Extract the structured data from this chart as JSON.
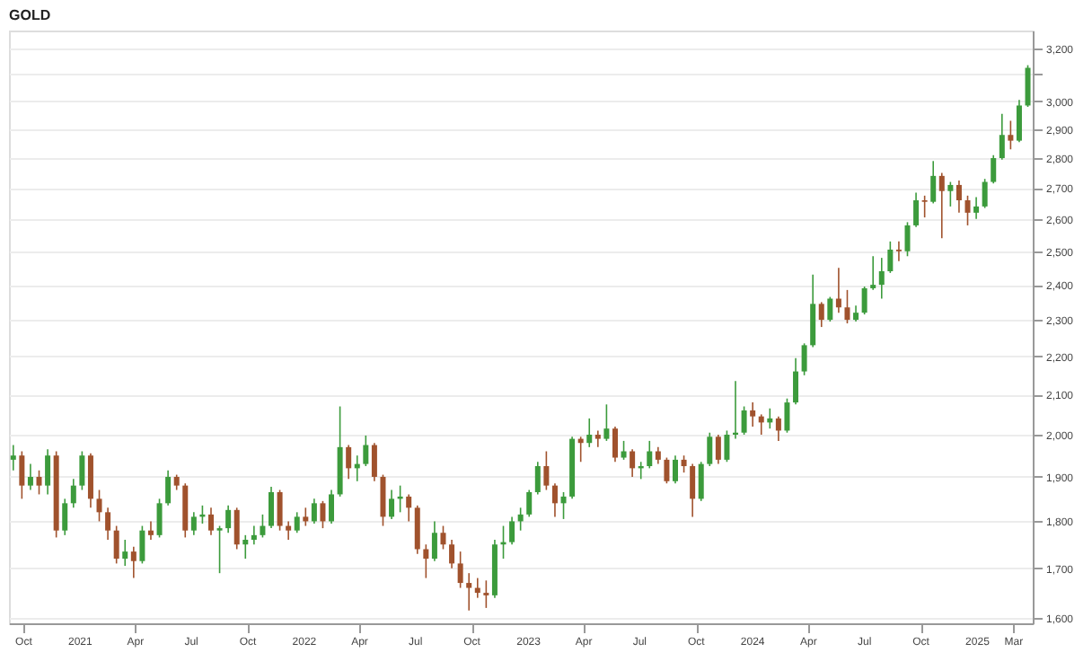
{
  "chart_data": {
    "type": "candlestick",
    "title": "GOLD",
    "log": true,
    "grid": "y",
    "colors": [
      "#3c9b3c",
      "#a0522d",
      "#3c9b3c",
      "#a0522d",
      "#3c9b3c",
      "#a0522d",
      "#3c9b3c",
      "#3c9b3c",
      "#3c9b3c",
      "#a0522d",
      "#a0522d",
      "#a0522d",
      "#a0522d",
      "#3c9b3c",
      "#a0522d",
      "#3c9b3c",
      "#a0522d",
      "#3c9b3c",
      "#3c9b3c",
      "#a0522d",
      "#a0522d",
      "#3c9b3c",
      "#3c9b3c",
      "#a0522d",
      "#3c9b3c",
      "#3c9b3c",
      "#a0522d",
      "#3c9b3c",
      "#3c9b3c",
      "#3c9b3c",
      "#3c9b3c",
      "#a0522d",
      "#a0522d",
      "#3c9b3c",
      "#a0522d",
      "#3c9b3c",
      "#a0522d",
      "#3c9b3c",
      "#3c9b3c",
      "#a0522d",
      "#3c9b3c",
      "#3c9b3c",
      "#a0522d",
      "#a0522d",
      "#3c9b3c",
      "#3c9b3c",
      "#a0522d",
      "#a0522d",
      "#a0522d",
      "#3c9b3c",
      "#a0522d",
      "#a0522d",
      "#a0522d",
      "#a0522d",
      "#a0522d",
      "#a0522d",
      "#3c9b3c",
      "#3c9b3c",
      "#3c9b3c",
      "#3c9b3c",
      "#3c9b3c",
      "#3c9b3c",
      "#a0522d",
      "#a0522d",
      "#3c9b3c",
      "#3c9b3c",
      "#a0522d",
      "#3c9b3c",
      "#a0522d",
      "#3c9b3c",
      "#a0522d",
      "#3c9b3c",
      "#a0522d",
      "#3c9b3c",
      "#3c9b3c",
      "#a0522d",
      "#a0522d",
      "#3c9b3c",
      "#a0522d",
      "#a0522d",
      "#3c9b3c",
      "#3c9b3c",
      "#a0522d",
      "#3c9b3c",
      "#3c9b3c",
      "#3c9b3c",
      "#a0522d",
      "#a0522d",
      "#3c9b3c",
      "#a0522d",
      "#3c9b3c",
      "#3c9b3c",
      "#3c9b3c",
      "#3c9b3c",
      "#a0522d",
      "#3c9b3c",
      "#a0522d",
      "#a0522d",
      "#3c9b3c",
      "#3c9b3c",
      "#3c9b3c",
      "#3c9b3c",
      "#3c9b3c",
      "#a0522d",
      "#3c9b3c",
      "#3c9b3c",
      "#a0522d",
      "#3c9b3c",
      "#a0522d",
      "#3c9b3c",
      "#a0522d",
      "#a0522d",
      "#3c9b3c",
      "#3c9b3c",
      "#3c9b3c",
      "#3c9b3c",
      "#a0522d",
      "#3c9b3c",
      "#3c9b3c"
    ],
    "xlim": [
      "2020-09-07",
      "2025-04-01"
    ],
    "xticks": [
      {
        "value": "2020-10-01",
        "label": "Oct"
      },
      {
        "value": "2021-01-01",
        "label": "2021"
      },
      {
        "value": "2021-04-01",
        "label": "Apr"
      },
      {
        "value": "2021-07-01",
        "label": "Jul"
      },
      {
        "value": "2021-10-01",
        "label": "Oct"
      },
      {
        "value": "2022-01-01",
        "label": "2022"
      },
      {
        "value": "2022-04-01",
        "label": "Apr"
      },
      {
        "value": "2022-07-01",
        "label": "Jul"
      },
      {
        "value": "2022-10-01",
        "label": "Oct"
      },
      {
        "value": "2023-01-01",
        "label": "2023"
      },
      {
        "value": "2023-04-01",
        "label": "Apr"
      },
      {
        "value": "2023-07-01",
        "label": "Jul"
      },
      {
        "value": "2023-10-01",
        "label": "Oct"
      },
      {
        "value": "2024-01-01",
        "label": "2024"
      },
      {
        "value": "2024-04-01",
        "label": "Apr"
      },
      {
        "value": "2024-07-01",
        "label": "Jul"
      },
      {
        "value": "2024-10-01",
        "label": "Oct"
      },
      {
        "value": "2025-01-01",
        "label": "2025"
      },
      {
        "value": "2025-03-01",
        "label": "Mar"
      }
    ],
    "ylim": [
      1590,
      3270
    ],
    "yticks": [
      {
        "value": 1600,
        "label": "1,600"
      },
      {
        "value": 1700,
        "label": "1,700"
      },
      {
        "value": 1800,
        "label": "1,800"
      },
      {
        "value": 1900,
        "label": "1,900"
      },
      {
        "value": 2000,
        "label": "2,000"
      },
      {
        "value": 2100,
        "label": "2,100"
      },
      {
        "value": 2200,
        "label": "2,200"
      },
      {
        "value": 2300,
        "label": "2,300"
      },
      {
        "value": 2400,
        "label": "2,400"
      },
      {
        "value": 2500,
        "label": "2,500"
      },
      {
        "value": 2600,
        "label": "2,600"
      },
      {
        "value": 2700,
        "label": "2,700"
      },
      {
        "value": 2800,
        "label": "2,800"
      },
      {
        "value": 2900,
        "label": "2,900"
      },
      {
        "value": 3000,
        "label": "3,000"
      },
      {
        "value": 3100,
        "label": null
      },
      {
        "value": 3200,
        "label": "3,200"
      }
    ],
    "x": [
      "2020-09-14",
      "2020-09-28",
      "2020-10-12",
      "2020-10-26",
      "2020-11-09",
      "2020-11-23",
      "2020-12-07",
      "2020-12-21",
      "2021-01-04",
      "2021-01-18",
      "2021-02-01",
      "2021-02-15",
      "2021-03-01",
      "2021-03-15",
      "2021-03-29",
      "2021-04-12",
      "2021-04-26",
      "2021-05-10",
      "2021-05-24",
      "2021-06-07",
      "2021-06-21",
      "2021-07-05",
      "2021-07-19",
      "2021-08-02",
      "2021-08-16",
      "2021-08-30",
      "2021-09-13",
      "2021-09-27",
      "2021-10-11",
      "2021-10-25",
      "2021-11-08",
      "2021-11-22",
      "2021-12-06",
      "2021-12-20",
      "2022-01-03",
      "2022-01-17",
      "2022-01-31",
      "2022-02-14",
      "2022-02-28",
      "2022-03-14",
      "2022-03-28",
      "2022-04-11",
      "2022-04-25",
      "2022-05-09",
      "2022-05-23",
      "2022-06-06",
      "2022-06-20",
      "2022-07-04",
      "2022-07-18",
      "2022-08-01",
      "2022-08-15",
      "2022-08-29",
      "2022-09-12",
      "2022-09-26",
      "2022-10-10",
      "2022-10-24",
      "2022-11-07",
      "2022-11-21",
      "2022-12-05",
      "2022-12-19",
      "2023-01-02",
      "2023-01-16",
      "2023-01-30",
      "2023-02-13",
      "2023-02-27",
      "2023-03-13",
      "2023-03-27",
      "2023-04-10",
      "2023-04-24",
      "2023-05-08",
      "2023-05-22",
      "2023-06-05",
      "2023-06-19",
      "2023-07-03",
      "2023-07-17",
      "2023-07-31",
      "2023-08-14",
      "2023-08-28",
      "2023-09-11",
      "2023-09-25",
      "2023-10-09",
      "2023-10-23",
      "2023-11-06",
      "2023-11-20",
      "2023-12-04",
      "2023-12-18",
      "2024-01-01",
      "2024-01-15",
      "2024-01-29",
      "2024-02-12",
      "2024-02-26",
      "2024-03-11",
      "2024-03-25",
      "2024-04-08",
      "2024-04-22",
      "2024-05-06",
      "2024-05-20",
      "2024-06-03",
      "2024-06-17",
      "2024-07-01",
      "2024-07-15",
      "2024-07-29",
      "2024-08-12",
      "2024-08-26",
      "2024-09-09",
      "2024-09-23",
      "2024-10-07",
      "2024-10-21",
      "2024-11-04",
      "2024-11-18",
      "2024-12-02",
      "2024-12-16",
      "2024-12-30",
      "2025-01-13",
      "2025-01-27",
      "2025-02-10",
      "2025-02-24",
      "2025-03-10",
      "2025-03-24"
    ],
    "ohlc": [
      [
        1940,
        1975,
        1915,
        1950
      ],
      [
        1950,
        1960,
        1850,
        1880
      ],
      [
        1880,
        1930,
        1870,
        1900
      ],
      [
        1900,
        1915,
        1860,
        1880
      ],
      [
        1880,
        1965,
        1860,
        1950
      ],
      [
        1950,
        1960,
        1765,
        1780
      ],
      [
        1780,
        1850,
        1770,
        1840
      ],
      [
        1840,
        1895,
        1830,
        1880
      ],
      [
        1880,
        1960,
        1870,
        1950
      ],
      [
        1950,
        1955,
        1830,
        1850
      ],
      [
        1850,
        1870,
        1800,
        1820
      ],
      [
        1820,
        1830,
        1760,
        1780
      ],
      [
        1780,
        1790,
        1710,
        1720
      ],
      [
        1720,
        1760,
        1705,
        1735
      ],
      [
        1735,
        1745,
        1680,
        1715
      ],
      [
        1715,
        1790,
        1710,
        1780
      ],
      [
        1780,
        1800,
        1760,
        1770
      ],
      [
        1770,
        1850,
        1765,
        1840
      ],
      [
        1840,
        1915,
        1835,
        1900
      ],
      [
        1900,
        1905,
        1870,
        1880
      ],
      [
        1880,
        1885,
        1765,
        1780
      ],
      [
        1780,
        1820,
        1770,
        1810
      ],
      [
        1810,
        1835,
        1795,
        1815
      ],
      [
        1815,
        1830,
        1770,
        1780
      ],
      [
        1780,
        1790,
        1690,
        1785
      ],
      [
        1785,
        1835,
        1775,
        1825
      ],
      [
        1825,
        1830,
        1740,
        1750
      ],
      [
        1750,
        1770,
        1720,
        1760
      ],
      [
        1760,
        1790,
        1750,
        1770
      ],
      [
        1770,
        1815,
        1765,
        1790
      ],
      [
        1790,
        1877,
        1785,
        1865
      ],
      [
        1865,
        1870,
        1780,
        1790
      ],
      [
        1790,
        1800,
        1760,
        1780
      ],
      [
        1780,
        1820,
        1775,
        1810
      ],
      [
        1810,
        1830,
        1790,
        1800
      ],
      [
        1800,
        1850,
        1795,
        1840
      ],
      [
        1840,
        1845,
        1785,
        1800
      ],
      [
        1800,
        1870,
        1795,
        1860
      ],
      [
        1860,
        2070,
        1855,
        1970
      ],
      [
        1970,
        1975,
        1895,
        1920
      ],
      [
        1920,
        1950,
        1890,
        1930
      ],
      [
        1930,
        1998,
        1925,
        1975
      ],
      [
        1975,
        1980,
        1890,
        1900
      ],
      [
        1900,
        1905,
        1790,
        1810
      ],
      [
        1810,
        1870,
        1805,
        1850
      ],
      [
        1850,
        1880,
        1820,
        1855
      ],
      [
        1855,
        1860,
        1800,
        1830
      ],
      [
        1830,
        1835,
        1730,
        1740
      ],
      [
        1740,
        1750,
        1680,
        1720
      ],
      [
        1720,
        1800,
        1715,
        1775
      ],
      [
        1775,
        1790,
        1740,
        1750
      ],
      [
        1750,
        1760,
        1700,
        1710
      ],
      [
        1710,
        1735,
        1660,
        1670
      ],
      [
        1670,
        1690,
        1615,
        1660
      ],
      [
        1660,
        1680,
        1640,
        1650
      ],
      [
        1650,
        1675,
        1620,
        1645
      ],
      [
        1645,
        1760,
        1640,
        1750
      ],
      [
        1750,
        1790,
        1720,
        1755
      ],
      [
        1755,
        1810,
        1750,
        1800
      ],
      [
        1800,
        1830,
        1780,
        1815
      ],
      [
        1815,
        1870,
        1810,
        1865
      ],
      [
        1865,
        1935,
        1860,
        1925
      ],
      [
        1925,
        1960,
        1870,
        1880
      ],
      [
        1880,
        1885,
        1810,
        1840
      ],
      [
        1840,
        1865,
        1805,
        1855
      ],
      [
        1855,
        1995,
        1850,
        1990
      ],
      [
        1990,
        1995,
        1935,
        1980
      ],
      [
        1980,
        2040,
        1970,
        2000
      ],
      [
        2000,
        2010,
        1970,
        1990
      ],
      [
        1990,
        2075,
        1985,
        2015
      ],
      [
        2015,
        2020,
        1935,
        1945
      ],
      [
        1945,
        1985,
        1940,
        1960
      ],
      [
        1960,
        1965,
        1900,
        1920
      ],
      [
        1920,
        1935,
        1895,
        1925
      ],
      [
        1925,
        1985,
        1920,
        1960
      ],
      [
        1960,
        1970,
        1930,
        1940
      ],
      [
        1940,
        1945,
        1885,
        1890
      ],
      [
        1890,
        1950,
        1885,
        1940
      ],
      [
        1940,
        1950,
        1910,
        1925
      ],
      [
        1925,
        1930,
        1810,
        1850
      ],
      [
        1850,
        1935,
        1845,
        1930
      ],
      [
        1930,
        2005,
        1925,
        1995
      ],
      [
        1995,
        2000,
        1930,
        1940
      ],
      [
        1940,
        2010,
        1935,
        2000
      ],
      [
        2000,
        2135,
        1990,
        2005
      ],
      [
        2005,
        2070,
        2000,
        2060
      ],
      [
        2060,
        2080,
        2020,
        2045
      ],
      [
        2045,
        2050,
        2000,
        2030
      ],
      [
        2030,
        2065,
        2015,
        2040
      ],
      [
        2040,
        2045,
        1985,
        2010
      ],
      [
        2010,
        2090,
        2005,
        2080
      ],
      [
        2080,
        2195,
        2075,
        2160
      ],
      [
        2160,
        2235,
        2150,
        2230
      ],
      [
        2230,
        2430,
        2225,
        2345
      ],
      [
        2345,
        2350,
        2280,
        2300
      ],
      [
        2300,
        2365,
        2295,
        2360
      ],
      [
        2360,
        2450,
        2320,
        2335
      ],
      [
        2335,
        2385,
        2290,
        2300
      ],
      [
        2300,
        2340,
        2295,
        2320
      ],
      [
        2320,
        2395,
        2315,
        2390
      ],
      [
        2390,
        2485,
        2385,
        2400
      ],
      [
        2400,
        2480,
        2360,
        2440
      ],
      [
        2440,
        2530,
        2435,
        2505
      ],
      [
        2505,
        2530,
        2470,
        2500
      ],
      [
        2500,
        2590,
        2485,
        2580
      ],
      [
        2580,
        2685,
        2575,
        2660
      ],
      [
        2660,
        2675,
        2605,
        2655
      ],
      [
        2655,
        2790,
        2650,
        2740
      ],
      [
        2740,
        2750,
        2540,
        2690
      ],
      [
        2690,
        2720,
        2640,
        2710
      ],
      [
        2710,
        2725,
        2620,
        2660
      ],
      [
        2660,
        2675,
        2580,
        2620
      ],
      [
        2620,
        2670,
        2600,
        2640
      ],
      [
        2640,
        2730,
        2635,
        2720
      ],
      [
        2720,
        2810,
        2715,
        2800
      ],
      [
        2800,
        2955,
        2795,
        2880
      ],
      [
        2880,
        2930,
        2830,
        2860
      ],
      [
        2860,
        3005,
        2855,
        2985
      ],
      [
        2985,
        3135,
        2980,
        3125
      ]
    ]
  }
}
